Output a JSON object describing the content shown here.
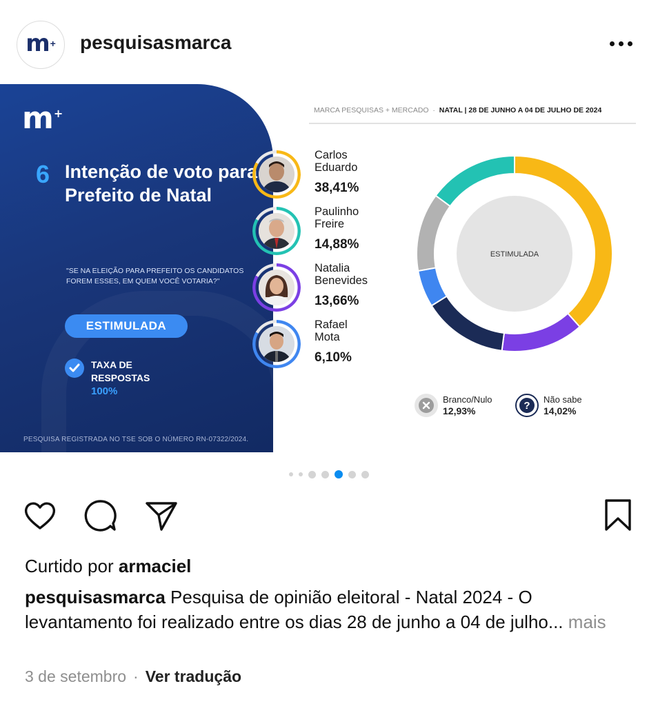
{
  "header": {
    "avatar_text": "m",
    "avatar_plus": "+",
    "username": "pesquisasmarca",
    "more_icon": "more-horizontal-icon"
  },
  "post": {
    "logo_text": "m",
    "logo_plus": "+",
    "number": "6",
    "title": "Intenção de voto para Prefeito de Natal",
    "question": "\"SE NA ELEIÇÃO PARA PREFEITO OS CANDIDATOS FOREM ESSES, EM QUEM VOCÊ VOTARIA?\"",
    "scenario_label": "ESTIMULADA",
    "response_rate_label_1": "TAXA DE",
    "response_rate_label_2": "RESPOSTAS",
    "response_rate_value": "100%",
    "registration": "PESQUISA REGISTRADA NO TSE SOB O NÚMERO RN-07322/2024.",
    "source_prefix": "MARCA PESQUISAS + MERCADO",
    "source_city_date": "NATAL | 28 DE JUNHO A 04 DE JULHO  DE 2024",
    "donut_center_label": "ESTIMULADA",
    "candidates": [
      {
        "name_1": "Carlos",
        "name_2": "Eduardo",
        "pct": "38,41%",
        "color": "#f8b816"
      },
      {
        "name_1": "Paulinho",
        "name_2": "Freire",
        "pct": "14,88%",
        "color": "#23c2b3"
      },
      {
        "name_1": "Natalia",
        "name_2": "Benevides",
        "pct": "13,66%",
        "color": "#7b3fe4"
      },
      {
        "name_1": "Rafael",
        "name_2": "Mota",
        "pct": "6,10%",
        "color": "#3f86f0"
      }
    ],
    "others": [
      {
        "label": "Branco/Nulo",
        "pct": "12,93%",
        "color": "#b2b2b2",
        "icon": "x-circle-icon"
      },
      {
        "label": "Não sabe",
        "pct": "14,02%",
        "color": "#1b2b56",
        "icon": "question-circle-icon"
      }
    ]
  },
  "chart_data": {
    "type": "pie",
    "categories": [
      "Carlos Eduardo",
      "Natalia Benevides",
      "Não sabe",
      "Rafael Mota",
      "Branco/Nulo",
      "Paulinho Freire"
    ],
    "values": [
      38.41,
      13.66,
      14.02,
      6.1,
      12.93,
      14.88
    ],
    "colors": [
      "#f8b816",
      "#7b3fe4",
      "#1b2b56",
      "#3f86f0",
      "#b2b2b2",
      "#23c2b3"
    ],
    "title": "",
    "center_label": "ESTIMULADA"
  },
  "carousel": {
    "count": 7,
    "active_index": 4
  },
  "actions": {
    "like_icon": "heart-icon",
    "comment_icon": "comment-icon",
    "share_icon": "send-icon",
    "save_icon": "bookmark-icon"
  },
  "likes": {
    "prefix": "Curtido por",
    "user": "armaciel"
  },
  "caption": {
    "user": "pesquisasmarca",
    "text": " Pesquisa de opinião eleitoral - Natal 2024 - O levantamento foi realizado entre os dias 28 de junho a 04 de julho...",
    "more": "mais"
  },
  "meta": {
    "date": "3 de setembro",
    "separator": "·",
    "translate": "Ver tradução"
  }
}
